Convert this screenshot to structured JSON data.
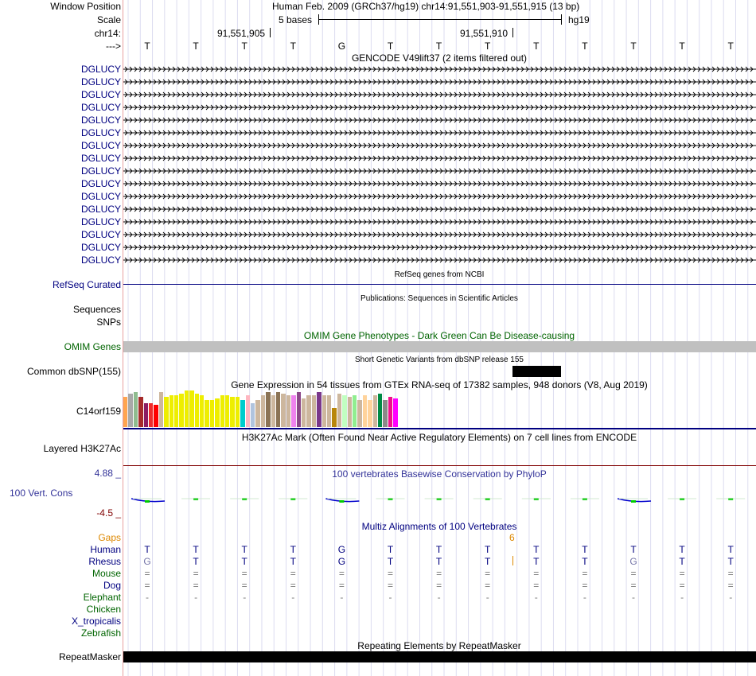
{
  "header": {
    "window_position_label": "Window Position",
    "scale_label": "Scale",
    "chrom_label": "chr14:",
    "strand_label": "--->",
    "assembly_text": "Human Feb. 2009 (GRCh37/hg19)   chr14:91,551,903-91,551,915 (13 bp)",
    "scale_text": "5 bases",
    "scale_db": "hg19",
    "coord_1": "91,551,905",
    "coord_2": "91,551,910"
  },
  "sequence": [
    "T",
    "T",
    "T",
    "T",
    "G",
    "T",
    "T",
    "T",
    "T",
    "T",
    "T",
    "T",
    "T"
  ],
  "gencode": {
    "title": "GENCODE V49lift37 (2 items filtered out)",
    "genes": [
      "DGLUCY",
      "DGLUCY",
      "DGLUCY",
      "DGLUCY",
      "DGLUCY",
      "DGLUCY",
      "DGLUCY",
      "DGLUCY",
      "DGLUCY",
      "DGLUCY",
      "DGLUCY",
      "DGLUCY",
      "DGLUCY",
      "DGLUCY",
      "DGLUCY",
      "DGLUCY"
    ]
  },
  "refseq": {
    "title": "RefSeq genes from NCBI",
    "label": "RefSeq Curated"
  },
  "publications": {
    "title": "Publications: Sequences in Scientific Articles",
    "label_1": "Sequences",
    "label_2": "SNPs"
  },
  "omim": {
    "title": "OMIM Gene Phenotypes - Dark Green Can Be Disease-causing",
    "label": "OMIM Genes"
  },
  "dbsnp": {
    "title": "Short Genetic Variants from dbSNP release 155",
    "label": "Common dbSNP(155)"
  },
  "gtex": {
    "title": "Gene Expression in 54 tissues from GTEx RNA-seq of 17382 samples, 948 donors (V8, Aug 2019)",
    "label": "C14orf159"
  },
  "h3k27ac": {
    "title": "H3K27Ac Mark (Often Found Near Active Regulatory Elements) on 7 cell lines from ENCODE",
    "label": "Layered H3K27Ac"
  },
  "conservation": {
    "title": "100 vertebrates Basewise Conservation by PhyloP",
    "label": "100 Vert. Cons",
    "max_label": "4.88 _",
    "min_label": "-4.5 _"
  },
  "multiz": {
    "title": "Multiz Alignments of 100 Vertebrates",
    "gaps_label": "Gaps",
    "gap_count": "6",
    "species": [
      {
        "name": "Human",
        "color": "#000080",
        "row": [
          "T",
          "T",
          "T",
          "T",
          "G",
          "T",
          "T",
          "T",
          "T",
          "T",
          "T",
          "T",
          "T"
        ]
      },
      {
        "name": "Rhesus",
        "color": "#000080",
        "row": [
          "G",
          "T",
          "T",
          "T",
          "G",
          "T",
          "T",
          "T",
          "T",
          "T",
          "G",
          "T",
          "T"
        ]
      },
      {
        "name": "Mouse",
        "color": "#006400",
        "row": [
          "=",
          "=",
          "=",
          "=",
          "=",
          "=",
          "=",
          "=",
          "=",
          "=",
          "=",
          "=",
          "="
        ]
      },
      {
        "name": "Dog",
        "color": "#000080",
        "row": [
          "=",
          "=",
          "=",
          "=",
          "=",
          "=",
          "=",
          "=",
          "=",
          "=",
          "=",
          "=",
          "="
        ]
      },
      {
        "name": "Elephant",
        "color": "#006400",
        "row": [
          "-",
          "-",
          "-",
          "-",
          "-",
          "-",
          "-",
          "-",
          "-",
          "-",
          "-",
          "-",
          "-"
        ]
      },
      {
        "name": "Chicken",
        "color": "#006400",
        "row": []
      },
      {
        "name": "X_tropicalis",
        "color": "#000080",
        "row": []
      },
      {
        "name": "Zebrafish",
        "color": "#006400",
        "row": []
      }
    ]
  },
  "repeatmasker": {
    "title": "Repeating Elements by RepeatMasker",
    "label": "RepeatMasker"
  },
  "colors": {
    "navy": "#000080",
    "omim_green": "#006400",
    "gaps_orange": "#dd8800",
    "cons_blue": "#333399",
    "gray_bar": "#c0c0c0"
  }
}
